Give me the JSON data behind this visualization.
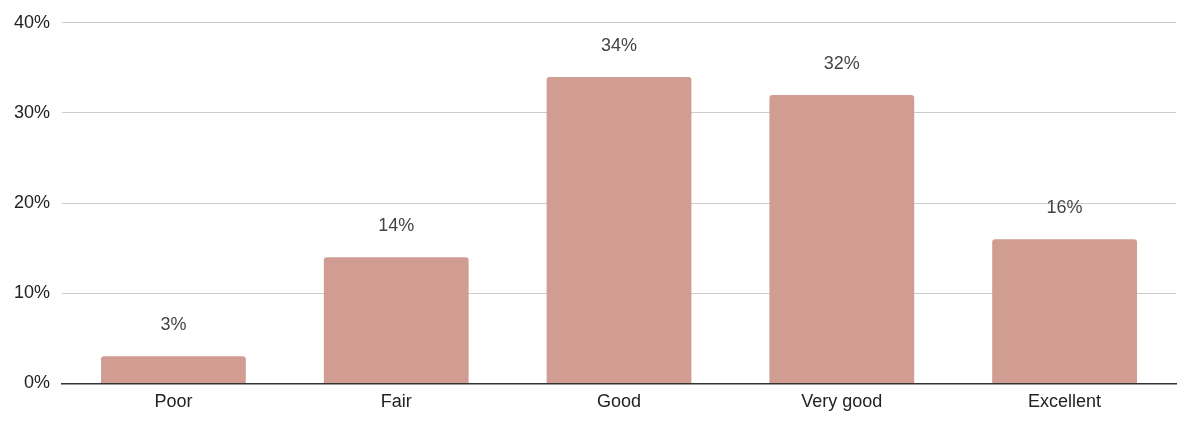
{
  "chart_data": {
    "type": "bar",
    "categories": [
      "Poor",
      "Fair",
      "Good",
      "Very good",
      "Excellent"
    ],
    "values": [
      3,
      14,
      34,
      32,
      16
    ],
    "value_labels": [
      "3%",
      "14%",
      "34%",
      "32%",
      "16%"
    ],
    "color": "#d19d93",
    "ylim": [
      0,
      40
    ],
    "yticks": [
      {
        "value": 0,
        "label": "0%"
      },
      {
        "value": 10,
        "label": "10%"
      },
      {
        "value": 20,
        "label": "20%"
      },
      {
        "value": 30,
        "label": "30%"
      },
      {
        "value": 40,
        "label": "40%"
      }
    ],
    "grid": "y"
  }
}
